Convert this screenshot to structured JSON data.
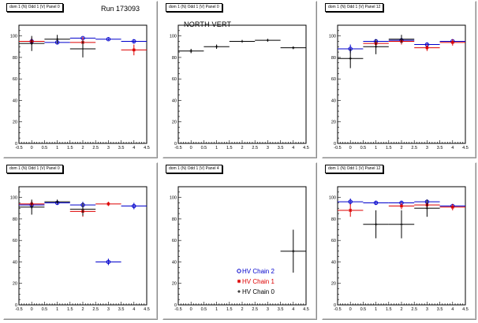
{
  "run_label": "Run 173093",
  "colors": {
    "chain2": "#0000cc",
    "chain1": "#dd0000",
    "chain0": "#000000",
    "frame": "#000000",
    "background": "#ffffff"
  },
  "legend": [
    {
      "label": "HV Chain 2",
      "series": "chain2",
      "marker": "circle"
    },
    {
      "label": "HV Chain 1",
      "series": "chain1",
      "marker": "star"
    },
    {
      "label": "HV Chain 0",
      "series": "chain0",
      "marker": "plus"
    }
  ],
  "chart_data": [
    {
      "type": "scatter",
      "title": "dom 1 (N) Odd 1 (V) Panel 0",
      "xlim": [
        -0.5,
        4.5
      ],
      "ylim": [
        0,
        110
      ],
      "xticks": [
        "-0.5",
        "0",
        "0.5",
        "1",
        "1.5",
        "2",
        "2.5",
        "3",
        "3.5",
        "4",
        "4.5"
      ],
      "yticks": [
        "0",
        "20",
        "40",
        "60",
        "80",
        "100"
      ],
      "series": [
        {
          "name": "HV Chain 2",
          "color": "chain2",
          "marker": "circle",
          "points": [
            {
              "x": 0,
              "y": 95,
              "err": 3
            },
            {
              "x": 1,
              "y": 94,
              "err": 2
            },
            {
              "x": 2,
              "y": 98,
              "err": 1
            },
            {
              "x": 3,
              "y": 97,
              "err": 1
            },
            {
              "x": 4,
              "y": 95,
              "err": 2
            }
          ]
        },
        {
          "name": "HV Chain 1",
          "color": "chain1",
          "marker": "star",
          "points": [
            {
              "x": 0,
              "y": 95,
              "err": 3
            },
            {
              "x": 2,
              "y": 94,
              "err": 5
            },
            {
              "x": 4,
              "y": 87,
              "err": 5
            }
          ]
        },
        {
          "name": "HV Chain 0",
          "color": "chain0",
          "marker": "plus",
          "points": [
            {
              "x": 0,
              "y": 93,
              "err": 7
            },
            {
              "x": 1,
              "y": 97,
              "err": 4
            },
            {
              "x": 2,
              "y": 88,
              "err": 8
            }
          ]
        }
      ]
    },
    {
      "type": "scatter",
      "title": "dom 1 (N) Odd 1 (V) Panel 0",
      "hist_label": "NORTH VERT",
      "xlim": [
        -0.5,
        4.5
      ],
      "ylim": [
        0,
        110
      ],
      "xticks": [
        "-0.5",
        "0",
        "0.5",
        "1",
        "1.5",
        "2",
        "2.5",
        "3",
        "3.5",
        "4",
        "4.5"
      ],
      "yticks": [
        "0",
        "20",
        "40",
        "60",
        "80",
        "100"
      ],
      "series": [
        {
          "name": "HV Chain 0",
          "color": "chain0",
          "marker": "plus",
          "points": [
            {
              "x": 0,
              "y": 86,
              "err": 2
            },
            {
              "x": 1,
              "y": 90,
              "err": 2
            },
            {
              "x": 2,
              "y": 95,
              "err": 1
            },
            {
              "x": 3,
              "y": 96,
              "err": 1
            },
            {
              "x": 4,
              "y": 89,
              "err": 1
            }
          ]
        }
      ]
    },
    {
      "type": "scatter",
      "title": "dom 1 (N) Odd 1 (V) Panel 12",
      "xlim": [
        -0.5,
        4.5
      ],
      "ylim": [
        0,
        110
      ],
      "xticks": [
        "-0.5",
        "0",
        "0.5",
        "1",
        "1.5",
        "2",
        "2.5",
        "3",
        "3.5",
        "4",
        "4.5"
      ],
      "yticks": [
        "0",
        "20",
        "40",
        "60",
        "80",
        "100"
      ],
      "series": [
        {
          "name": "HV Chain 2",
          "color": "chain2",
          "marker": "circle",
          "points": [
            {
              "x": 0,
              "y": 88,
              "err": 4
            },
            {
              "x": 1,
              "y": 95,
              "err": 2
            },
            {
              "x": 2,
              "y": 96,
              "err": 2
            },
            {
              "x": 3,
              "y": 92,
              "err": 2
            },
            {
              "x": 4,
              "y": 95,
              "err": 2
            }
          ]
        },
        {
          "name": "HV Chain 1",
          "color": "chain1",
          "marker": "star",
          "points": [
            {
              "x": 1,
              "y": 93,
              "err": 3
            },
            {
              "x": 2,
              "y": 95,
              "err": 3
            },
            {
              "x": 3,
              "y": 89,
              "err": 3
            },
            {
              "x": 4,
              "y": 94,
              "err": 3
            }
          ]
        },
        {
          "name": "HV Chain 0",
          "color": "chain0",
          "marker": "plus",
          "points": [
            {
              "x": 0,
              "y": 79,
              "err": 9
            },
            {
              "x": 1,
              "y": 90,
              "err": 7
            },
            {
              "x": 2,
              "y": 97,
              "err": 4
            }
          ]
        }
      ]
    },
    {
      "type": "scatter",
      "title": "dom 1 (N) Odd 1 (V) Panel 0",
      "xlim": [
        -0.5,
        4.5
      ],
      "ylim": [
        0,
        110
      ],
      "xticks": [
        "-0.5",
        "0",
        "0.5",
        "1",
        "1.5",
        "2",
        "2.5",
        "3",
        "3.5",
        "4",
        "4.5"
      ],
      "yticks": [
        "0",
        "20",
        "40",
        "60",
        "80",
        "100"
      ],
      "series": [
        {
          "name": "HV Chain 2",
          "color": "chain2",
          "marker": "circle",
          "points": [
            {
              "x": 0,
              "y": 93,
              "err": 3
            },
            {
              "x": 1,
              "y": 95,
              "err": 2
            },
            {
              "x": 2,
              "y": 93,
              "err": 3
            },
            {
              "x": 3,
              "y": 40,
              "err": 3
            },
            {
              "x": 4,
              "y": 92,
              "err": 3
            }
          ]
        },
        {
          "name": "HV Chain 1",
          "color": "chain1",
          "marker": "star",
          "points": [
            {
              "x": 0,
              "y": 94,
              "err": 3
            },
            {
              "x": 2,
              "y": 87,
              "err": 5
            },
            {
              "x": 3,
              "y": 94,
              "err": 2
            }
          ]
        },
        {
          "name": "HV Chain 0",
          "color": "chain0",
          "marker": "plus",
          "points": [
            {
              "x": 0,
              "y": 91,
              "err": 7
            },
            {
              "x": 1,
              "y": 96,
              "err": 2
            },
            {
              "x": 2,
              "y": 89,
              "err": 6
            }
          ]
        }
      ]
    },
    {
      "type": "scatter",
      "title": "dom 1 (N) Odd 1 (V) Panel 4",
      "legend_position": "bottom-right",
      "xlim": [
        -0.5,
        4.5
      ],
      "ylim": [
        0,
        110
      ],
      "xticks": [
        "-0.5",
        "0",
        "0.5",
        "1",
        "1.5",
        "2",
        "2.5",
        "3",
        "3.5",
        "4",
        "4.5"
      ],
      "yticks": [
        "0",
        "20",
        "40",
        "60",
        "80",
        "100"
      ],
      "series": [
        {
          "name": "HV Chain 0",
          "color": "chain0",
          "marker": "plus",
          "points": [
            {
              "x": 4,
              "y": 50,
              "err": 20
            }
          ]
        }
      ]
    },
    {
      "type": "scatter",
      "title": "dom 1 (N) Odd 1 (V) Panel 12",
      "xlim": [
        -0.5,
        4.5
      ],
      "ylim": [
        0,
        110
      ],
      "xticks": [
        "-0.5",
        "0",
        "0.5",
        "1",
        "1.5",
        "2",
        "2.5",
        "3",
        "3.5",
        "4",
        "4.5"
      ],
      "yticks": [
        "0",
        "20",
        "40",
        "60",
        "80",
        "100"
      ],
      "series": [
        {
          "name": "HV Chain 2",
          "color": "chain2",
          "marker": "circle",
          "points": [
            {
              "x": 0,
              "y": 96,
              "err": 3
            },
            {
              "x": 1,
              "y": 95,
              "err": 2
            },
            {
              "x": 2,
              "y": 95,
              "err": 2
            },
            {
              "x": 3,
              "y": 96,
              "err": 2
            },
            {
              "x": 4,
              "y": 92,
              "err": 2
            }
          ]
        },
        {
          "name": "HV Chain 1",
          "color": "chain1",
          "marker": "star",
          "points": [
            {
              "x": 0,
              "y": 88,
              "err": 6
            },
            {
              "x": 2,
              "y": 92,
              "err": 3
            },
            {
              "x": 3,
              "y": 93,
              "err": 3
            },
            {
              "x": 4,
              "y": 91,
              "err": 3
            }
          ]
        },
        {
          "name": "HV Chain 0",
          "color": "chain0",
          "marker": "plus",
          "points": [
            {
              "x": 1,
              "y": 75,
              "err": 13
            },
            {
              "x": 2,
              "y": 75,
              "err": 13
            },
            {
              "x": 3,
              "y": 90,
              "err": 8
            }
          ]
        }
      ]
    }
  ]
}
